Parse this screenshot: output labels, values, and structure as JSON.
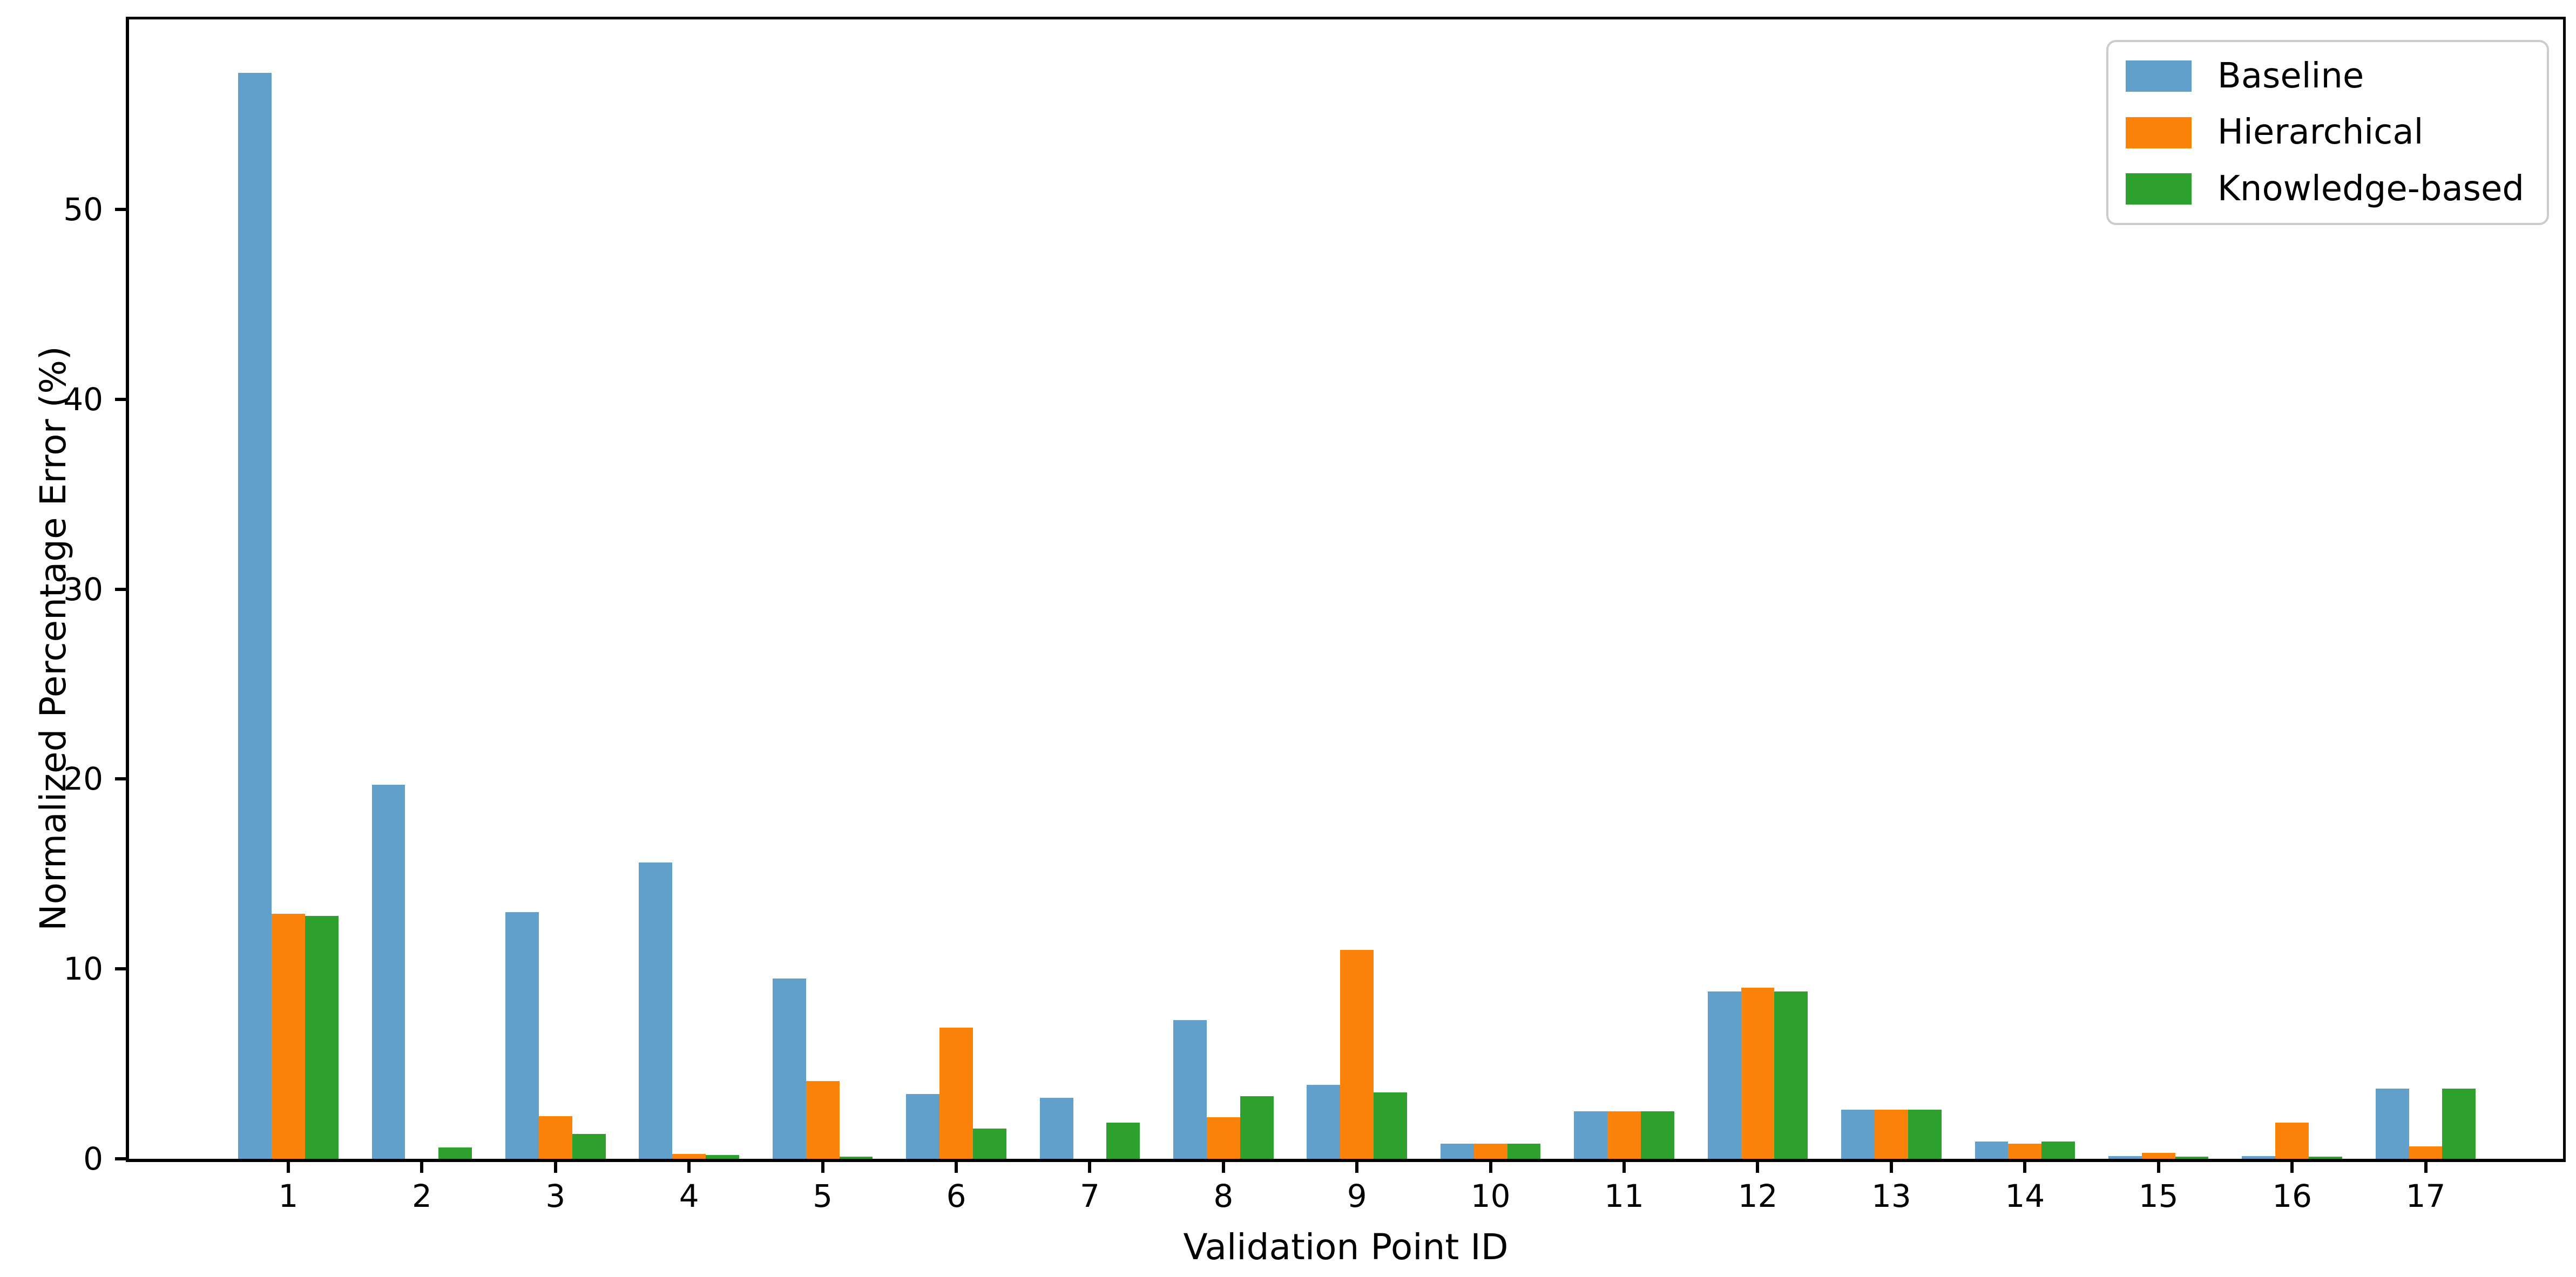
{
  "chart_data": {
    "type": "bar",
    "title": "",
    "xlabel": "Validation Point ID",
    "ylabel": "Normalized Percentage Error (%)",
    "categories": [
      "1",
      "2",
      "3",
      "4",
      "5",
      "6",
      "7",
      "8",
      "9",
      "10",
      "11",
      "12",
      "13",
      "14",
      "15",
      "16",
      "17"
    ],
    "series": [
      {
        "name": "Baseline",
        "color": "#62a0cc",
        "values": [
          57.2,
          19.7,
          13.0,
          15.6,
          9.5,
          3.4,
          3.2,
          7.3,
          3.9,
          0.8,
          2.5,
          8.8,
          2.6,
          0.9,
          0.15,
          0.15,
          3.7
        ]
      },
      {
        "name": "Hierarchical",
        "color": "#fc830a",
        "values": [
          12.9,
          0,
          2.25,
          0.25,
          4.1,
          6.9,
          0,
          2.2,
          11.0,
          0.8,
          2.5,
          9.0,
          2.6,
          0.8,
          0.3,
          1.9,
          0.65
        ]
      },
      {
        "name": "Knowledge-based",
        "color": "#2da02d",
        "values": [
          12.8,
          0.6,
          1.3,
          0.2,
          0.1,
          1.6,
          1.9,
          3.3,
          3.5,
          0.8,
          2.5,
          8.8,
          2.6,
          0.9,
          0.1,
          0.1,
          3.7
        ]
      }
    ],
    "ylim": [
      0,
      60
    ],
    "yticks": [
      0,
      10,
      20,
      30,
      40,
      50
    ],
    "grid": false,
    "legend_position": "upper right",
    "axis_color": "#000000",
    "legend_border_color": "#cccccc",
    "background_color": "#ffffff"
  }
}
